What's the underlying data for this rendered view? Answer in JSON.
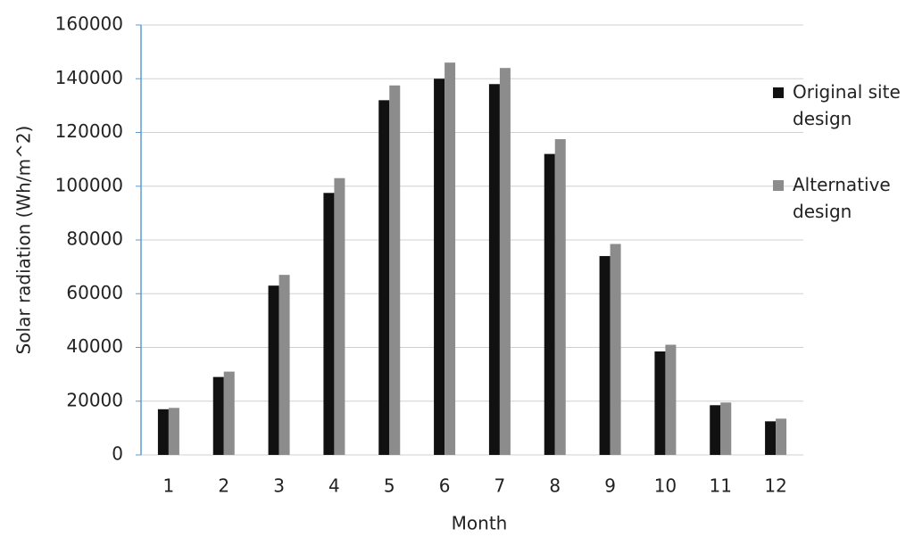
{
  "chart_data": {
    "type": "bar",
    "x_label": "Month",
    "y_label": "Solar radiation (Wh/m^2)",
    "categories": [
      1,
      2,
      3,
      4,
      5,
      6,
      7,
      8,
      9,
      10,
      11,
      12
    ],
    "series": [
      {
        "name": "Original site design",
        "color": "#111111",
        "values": [
          17000,
          29000,
          63000,
          97500,
          132000,
          140000,
          138000,
          112000,
          74000,
          38500,
          18500,
          12500
        ]
      },
      {
        "name": "Alternative design",
        "color": "#8c8c8c",
        "values": [
          17500,
          31000,
          67000,
          103000,
          137500,
          146000,
          144000,
          117500,
          78500,
          41000,
          19500,
          13500
        ]
      }
    ],
    "ylim": [
      0,
      160000
    ],
    "yticks": [
      0,
      20000,
      40000,
      60000,
      80000,
      100000,
      120000,
      140000,
      160000
    ],
    "grid": true,
    "legend": "right"
  }
}
